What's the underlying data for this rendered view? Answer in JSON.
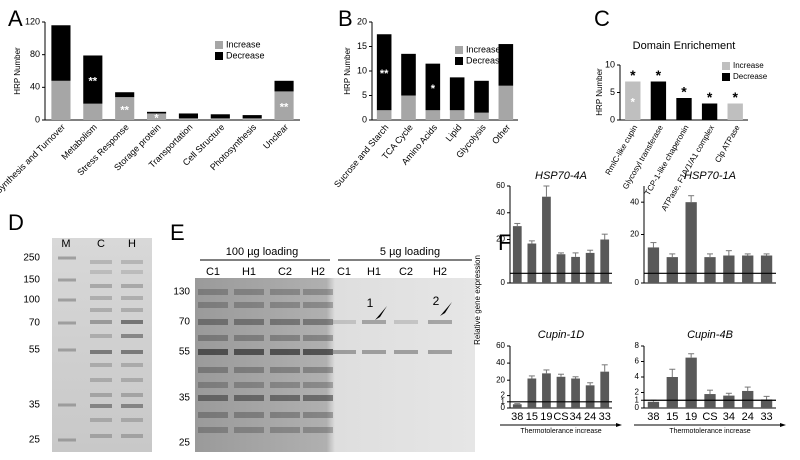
{
  "chart_data": [
    {
      "type": "stacked_bar",
      "panel": "A",
      "ylabel": "HRP Number",
      "categories": [
        "Protein Synthesis and Turnover",
        "Metabolism",
        "Stress Response",
        "Storage protein",
        "Transportation",
        "Cell Structure",
        "Photosynthesis",
        "Unclear"
      ],
      "series": [
        {
          "name": "Increase",
          "color": "#a6a6a6",
          "values": [
            48,
            20,
            28,
            8,
            2,
            2,
            2,
            35
          ],
          "annotations": [
            null,
            null,
            "**",
            "*",
            null,
            null,
            null,
            "**"
          ]
        },
        {
          "name": "Decrease",
          "color": "#000000",
          "values": [
            68,
            59,
            6,
            2,
            6,
            5,
            4,
            13
          ],
          "annotations": [
            null,
            "**",
            null,
            null,
            null,
            null,
            null,
            null
          ]
        }
      ],
      "ylim": [
        0,
        120
      ],
      "yticks": [
        0,
        40,
        80,
        120
      ],
      "legend": "upper right"
    },
    {
      "type": "stacked_bar",
      "panel": "B",
      "ylabel": "HRP Number",
      "categories": [
        "Sucrose and Starch",
        "TCA Cycle",
        "Amino Acids",
        "Lipid",
        "Glycolysis",
        "Other"
      ],
      "series": [
        {
          "name": "Increase",
          "color": "#a6a6a6",
          "values": [
            2,
            5,
            2,
            2,
            1.5,
            7
          ]
        },
        {
          "name": "Decrease",
          "color": "#000000",
          "values": [
            15.5,
            8.5,
            9.5,
            6.7,
            6.5,
            8.5
          ],
          "annotations": [
            "**",
            null,
            "*",
            null,
            null,
            null
          ]
        }
      ],
      "ylim": [
        0,
        20
      ],
      "yticks": [
        0,
        5,
        10,
        15,
        20
      ],
      "legend": "upper right"
    },
    {
      "type": "stacked_bar",
      "panel": "C",
      "title": "Domain Enrichement",
      "ylabel": "HRP Number",
      "categories": [
        "RmlC-like cupin",
        "Glycosyl transferase",
        "TCP-1-like chaperonin",
        "ATPase, F1/V1/A1 complex",
        "Clp ATPase"
      ],
      "series": [
        {
          "name": "Increase",
          "color": "#bfbfbf",
          "values": [
            7,
            0,
            0,
            0,
            3
          ],
          "annotations": [
            "*",
            null,
            null,
            null,
            null
          ]
        },
        {
          "name": "Decrease",
          "color": "#000000",
          "values": [
            0,
            7,
            4,
            3,
            0
          ]
        }
      ],
      "top_annotations": [
        "*",
        "*",
        "*",
        "*",
        "*"
      ],
      "ylim": [
        0,
        10
      ],
      "yticks": [
        0,
        5,
        10
      ],
      "legend": "upper right"
    },
    {
      "type": "bar",
      "panel": "F",
      "title": "HSP70-4A",
      "series": [
        {
          "color": "#595959",
          "values": [
            30,
            17,
            52,
            9,
            7,
            10,
            20
          ],
          "errors": [
            2,
            2,
            8,
            1,
            3,
            2,
            4
          ]
        }
      ],
      "ylim": [
        0,
        60
      ],
      "ybreak": 2,
      "yticks": [
        0,
        20,
        40,
        60
      ],
      "ref_line": 1
    },
    {
      "type": "bar",
      "title": "HSP70-1A",
      "series": [
        {
          "color": "#595959",
          "values": [
            12,
            6,
            40,
            6,
            7,
            7,
            7
          ],
          "errors": [
            3,
            2,
            4,
            2,
            3,
            1,
            1
          ]
        }
      ],
      "ylim": [
        0,
        50
      ],
      "ybreak": 2,
      "yticks": [
        0,
        20,
        40
      ],
      "ref_line": 1
    },
    {
      "type": "bar",
      "title": "Cupin-1D",
      "ylabel": "Relative gene expression",
      "xlabel": "Thermotolerance increase",
      "categories": [
        "38",
        "15",
        "19",
        "CS",
        "34",
        "24",
        "33"
      ],
      "series": [
        {
          "color": "#595959",
          "values": [
            0.6,
            22,
            28,
            24,
            22,
            14,
            30
          ],
          "errors": [
            0.1,
            3,
            4,
            3,
            2,
            3,
            8
          ]
        }
      ],
      "ylim": [
        0,
        60
      ],
      "ybreak": 2,
      "yticks": [
        0,
        1,
        2,
        20,
        40,
        60
      ],
      "ref_line": 1
    },
    {
      "type": "bar",
      "title": "Cupin-4B",
      "xlabel": "Thermotolerance increase",
      "categories": [
        "38",
        "15",
        "19",
        "CS",
        "34",
        "24",
        "33"
      ],
      "series": [
        {
          "color": "#595959",
          "values": [
            0.8,
            4,
            6.5,
            1.8,
            1.6,
            2.2,
            1.1
          ],
          "errors": [
            0.2,
            1,
            0.5,
            0.5,
            0.3,
            0.5,
            0.4
          ]
        }
      ],
      "ylim": [
        0,
        8
      ],
      "yticks": [
        0,
        1,
        2,
        4,
        6,
        8
      ],
      "ref_line": 1
    }
  ],
  "gels": [
    {
      "panel": "D",
      "lanes": [
        "M",
        "C",
        "H"
      ],
      "markers": [
        250,
        150,
        100,
        70,
        55,
        35,
        25
      ]
    },
    {
      "panel": "E",
      "loading": [
        "100 µg loading",
        "5 µg loading"
      ],
      "lanes": [
        "C1",
        "H1",
        "C2",
        "H2",
        "C1",
        "H1",
        "C2",
        "H2"
      ],
      "markers": [
        130,
        70,
        55,
        35,
        25
      ],
      "arrows": [
        "1",
        "2"
      ]
    }
  ]
}
